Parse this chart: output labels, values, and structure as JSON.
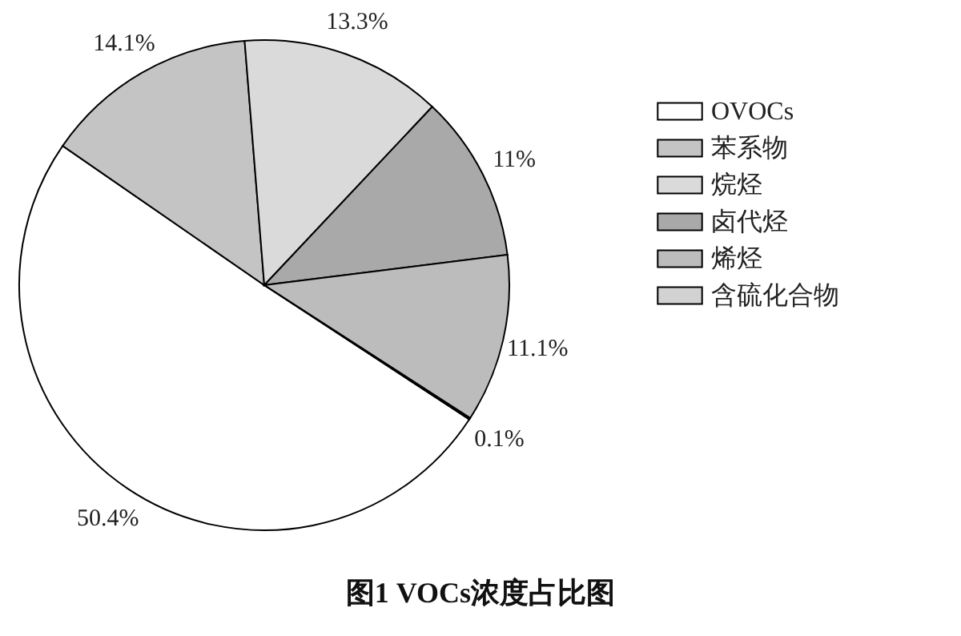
{
  "chart_data": {
    "type": "pie",
    "title": "图1  VOCs浓度占比图",
    "categories": [
      "OVOCs",
      "苯系物",
      "烷烃",
      "卤代烃",
      "烯烃",
      "含硫化合物"
    ],
    "values": [
      50.4,
      14.1,
      13.3,
      11,
      11.1,
      0.1
    ],
    "value_labels": [
      "50.4%",
      "14.1%",
      "13.3%",
      "11%",
      "11.1%",
      "0.1%"
    ],
    "colors": [
      "#ffffff",
      "#c4c4c4",
      "#dadada",
      "#a9a9a9",
      "#bcbcbc",
      "#d2d2d2"
    ],
    "legend": "right"
  }
}
